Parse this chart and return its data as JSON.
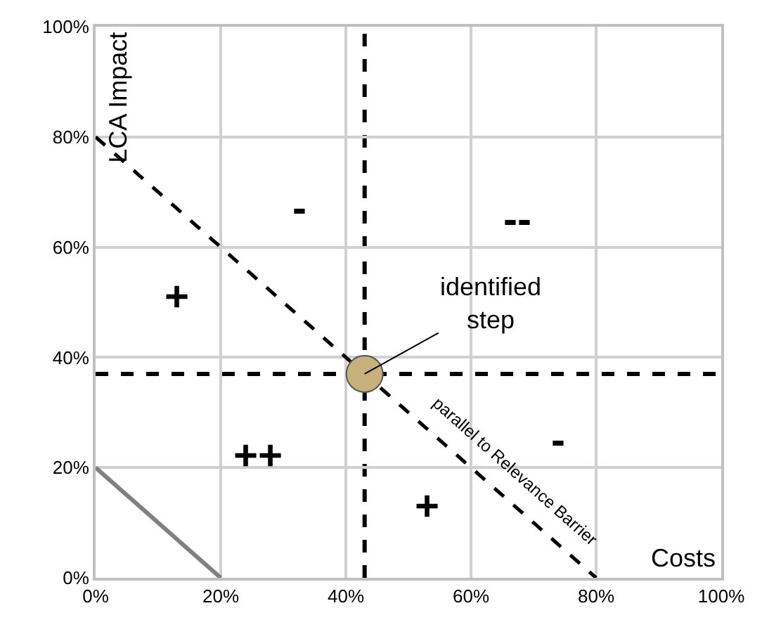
{
  "chart_data": {
    "type": "line",
    "xlabel": "Costs",
    "ylabel": "LCA Impact",
    "series": [
      {
        "color": "#000000",
        "line_style": "dashed",
        "marker": "none",
        "x": [
          0,
          80
        ],
        "values": [
          80,
          0
        ]
      },
      {
        "color": "#808080",
        "line_style": "solid",
        "marker": "none",
        "x": [
          0,
          20
        ],
        "values": [
          20,
          0
        ]
      },
      {
        "type": "scatter",
        "color": "#c8b07a",
        "marker": "circle",
        "x": [
          43
        ],
        "values": [
          37
        ]
      }
    ],
    "ref_lines": [
      {
        "axis": "x",
        "value": 43,
        "color": "#000000",
        "line_style": "dashed"
      },
      {
        "axis": "y",
        "value": 37,
        "color": "#000000",
        "line_style": "dashed"
      }
    ],
    "annotations": [
      {
        "text": "identified step",
        "x": 43,
        "y": 37
      },
      "parallel to Relevance Barrier",
      "+",
      "-",
      "--",
      "++",
      "+",
      "-"
    ],
    "xlim": [
      0,
      100
    ],
    "ylim": [
      0,
      100
    ],
    "xticks": [
      {
        "value": 0,
        "label": "0%"
      },
      {
        "value": 20,
        "label": "20%"
      },
      {
        "value": 40,
        "label": "40%"
      },
      {
        "value": 60,
        "label": "60%"
      },
      {
        "value": 80,
        "label": "80%"
      },
      {
        "value": 100,
        "label": "100%"
      }
    ],
    "yticks": [
      {
        "value": 0,
        "label": "0%"
      },
      {
        "value": 20,
        "label": "20%"
      },
      {
        "value": 40,
        "label": "40%"
      },
      {
        "value": 60,
        "label": "60%"
      },
      {
        "value": 80,
        "label": "80%"
      },
      {
        "value": 100,
        "label": "100%"
      }
    ],
    "grid": true
  }
}
